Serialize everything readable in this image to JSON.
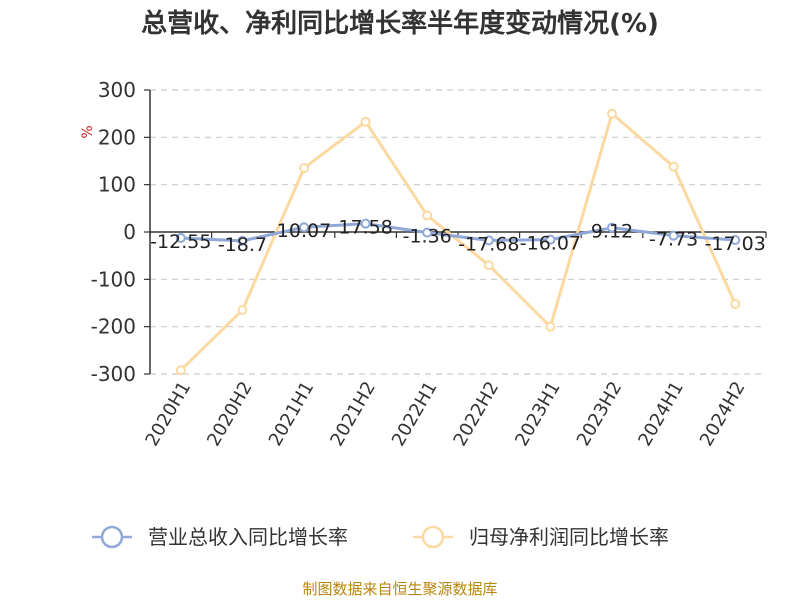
{
  "chart_data": {
    "type": "line",
    "title": "总营收、净利同比增长率半年度变动情况(%)",
    "unit_label": "%",
    "categories": [
      "2020H1",
      "2020H2",
      "2021H1",
      "2021H2",
      "2022H1",
      "2022H2",
      "2023H1",
      "2023H2",
      "2024H1",
      "2024H2"
    ],
    "series": [
      {
        "name": "营业总收入同比增长率",
        "color": "#8fa8d8",
        "values": [
          -12.55,
          -18.7,
          10.07,
          17.58,
          -1.36,
          -17.68,
          -16.07,
          9.12,
          -7.73,
          -17.03
        ],
        "data_labels": [
          "-12.55",
          "-18.7",
          "10.07",
          "17.58",
          "-1.36",
          "-17.68",
          "-16.07",
          "9.12",
          "-7.73",
          "-17.03"
        ]
      },
      {
        "name": "归母净利润同比增长率",
        "color": "#fcd9a0",
        "values": [
          -292,
          -165,
          135,
          233,
          35,
          -70,
          -200,
          250,
          138,
          -152
        ]
      }
    ],
    "ylim": [
      -300,
      300
    ],
    "yticks": [
      -300,
      -200,
      -100,
      0,
      100,
      200,
      300
    ],
    "grid": true,
    "legend_position": "bottom"
  },
  "source_text": "制图数据来自恒生聚源数据库"
}
